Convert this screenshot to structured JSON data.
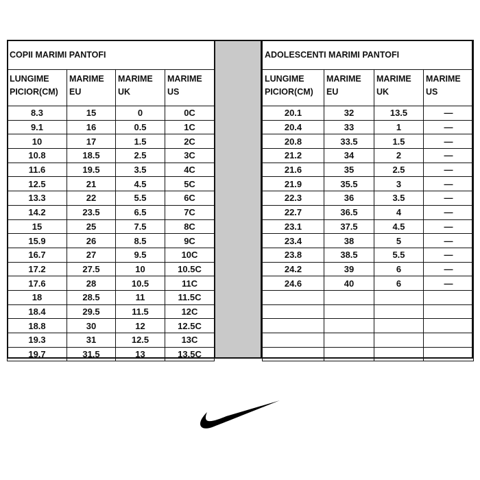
{
  "left": {
    "title": "COPII MARIMI PANTOFI",
    "headers": [
      [
        "LUNGIME",
        "PICIOR(CM)"
      ],
      [
        "MARIME",
        "EU"
      ],
      [
        "MARIME",
        "UK"
      ],
      [
        "MARIME",
        "US"
      ]
    ],
    "rows": [
      [
        "8.3",
        "15",
        "0",
        "0C"
      ],
      [
        "9.1",
        "16",
        "0.5",
        "1C"
      ],
      [
        "10",
        "17",
        "1.5",
        "2C"
      ],
      [
        "10.8",
        "18.5",
        "2.5",
        "3C"
      ],
      [
        "11.6",
        "19.5",
        "3.5",
        "4C"
      ],
      [
        "12.5",
        "21",
        "4.5",
        "5C"
      ],
      [
        "13.3",
        "22",
        "5.5",
        "6C"
      ],
      [
        "14.2",
        "23.5",
        "6.5",
        "7C"
      ],
      [
        "15",
        "25",
        "7.5",
        "8C"
      ],
      [
        "15.9",
        "26",
        "8.5",
        "9C"
      ],
      [
        "16.7",
        "27",
        "9.5",
        "10C"
      ],
      [
        "17.2",
        "27.5",
        "10",
        "10.5C"
      ],
      [
        "17.6",
        "28",
        "10.5",
        "11C"
      ],
      [
        "18",
        "28.5",
        "11",
        "11.5C"
      ],
      [
        "18.4",
        "29.5",
        "11.5",
        "12C"
      ],
      [
        "18.8",
        "30",
        "12",
        "12.5C"
      ],
      [
        "19.3",
        "31",
        "12.5",
        "13C"
      ],
      [
        "19.7",
        "31.5",
        "13",
        "13.5C"
      ]
    ]
  },
  "right": {
    "title": "ADOLESCENTI MARIMI PANTOFI",
    "headers": [
      [
        "LUNGIME",
        "PICIOR(CM)"
      ],
      [
        "MARIME",
        "EU"
      ],
      [
        "MARIME",
        "UK"
      ],
      [
        "MARIME",
        "US"
      ]
    ],
    "rows": [
      [
        "20.1",
        "32",
        "13.5",
        "—"
      ],
      [
        "20.4",
        "33",
        "1",
        "—"
      ],
      [
        "20.8",
        "33.5",
        "1.5",
        "—"
      ],
      [
        "21.2",
        "34",
        "2",
        "—"
      ],
      [
        "21.6",
        "35",
        "2.5",
        "—"
      ],
      [
        "21.9",
        "35.5",
        "3",
        "—"
      ],
      [
        "22.3",
        "36",
        "3.5",
        "—"
      ],
      [
        "22.7",
        "36.5",
        "4",
        "—"
      ],
      [
        "23.1",
        "37.5",
        "4.5",
        "—"
      ],
      [
        "23.4",
        "38",
        "5",
        "—"
      ],
      [
        "23.8",
        "38.5",
        "5.5",
        "—"
      ],
      [
        "24.2",
        "39",
        "6",
        "—"
      ],
      [
        "24.6",
        "40",
        "6",
        "—"
      ],
      [
        "",
        "",
        "",
        ""
      ],
      [
        "",
        "",
        "",
        ""
      ],
      [
        "",
        "",
        "",
        ""
      ],
      [
        "",
        "",
        "",
        ""
      ],
      [
        "",
        "",
        "",
        ""
      ]
    ]
  },
  "logo": {
    "icon": "nike-swoosh",
    "color": "#000000"
  }
}
